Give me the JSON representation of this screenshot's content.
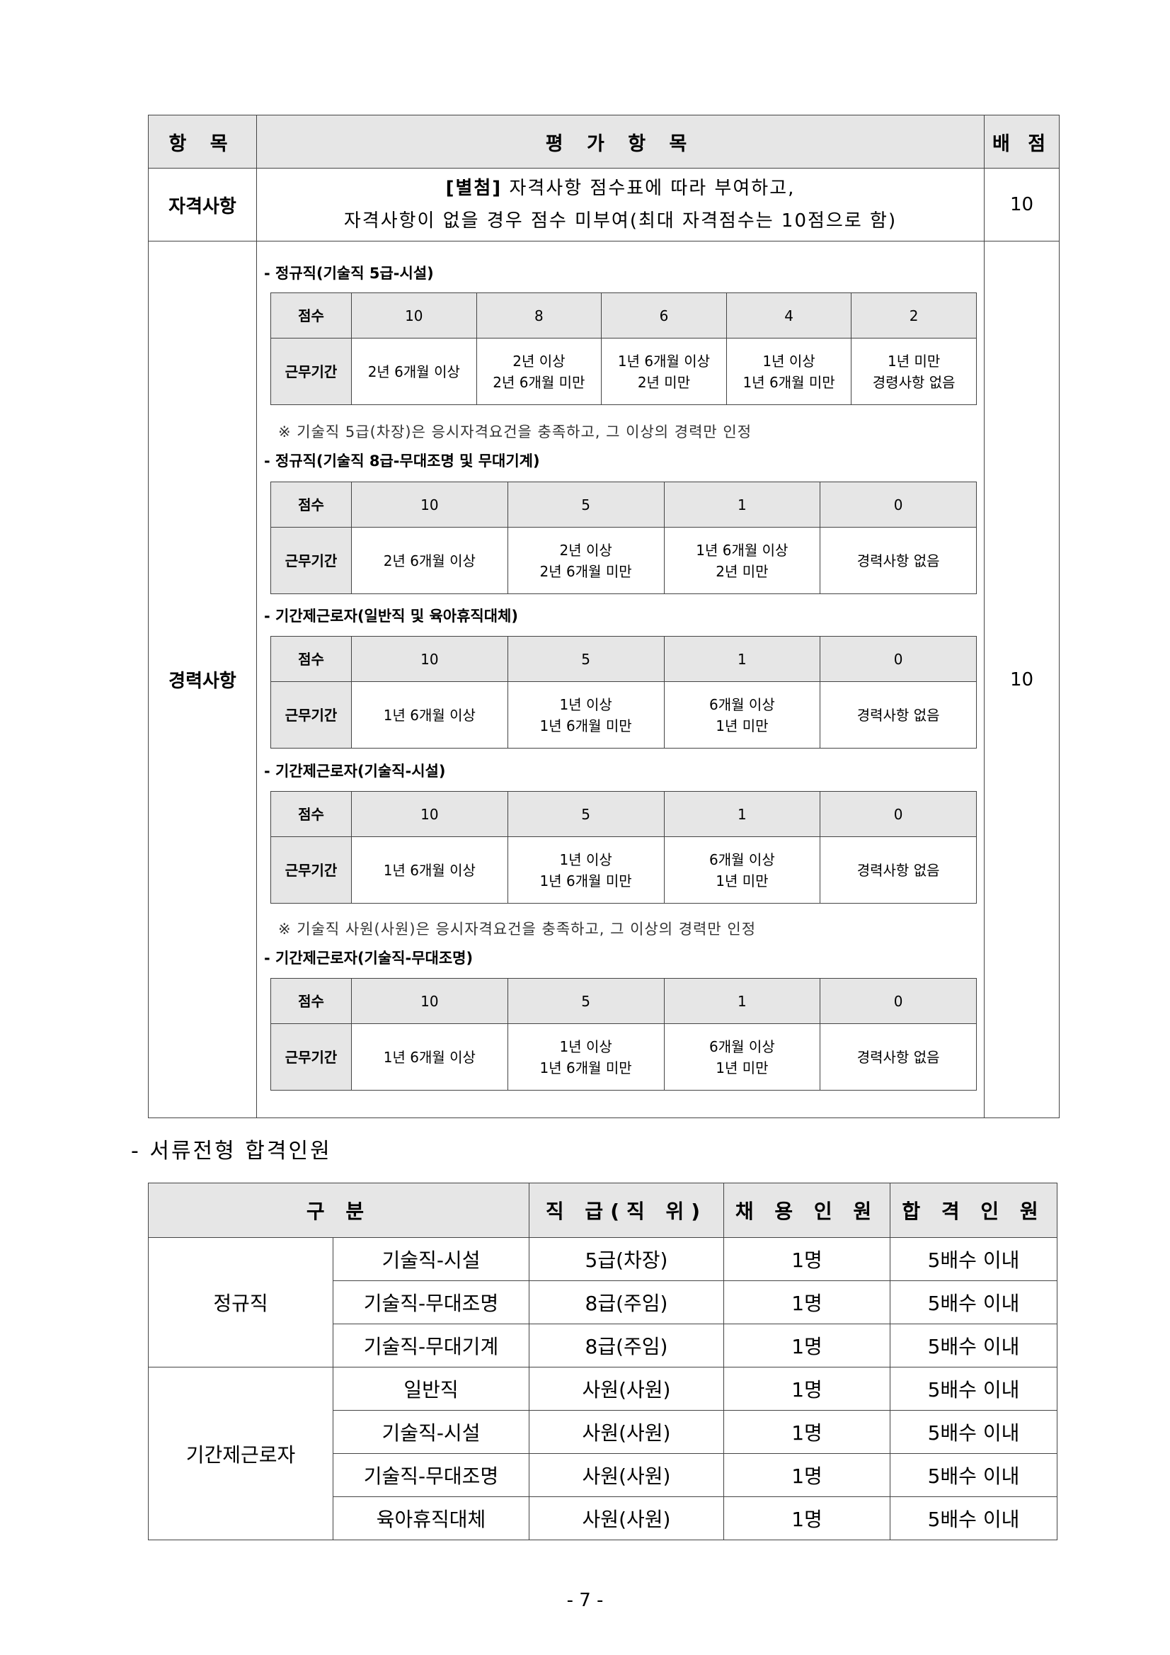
{
  "eval_table": {
    "headers": {
      "item": "항 목",
      "eval": "평 가 항 목",
      "points": "배 점"
    },
    "qualification": {
      "label": "자격사항",
      "desc_bold": "[별첨]",
      "desc_line1": " 자격사항 점수표에 따라 부여하고,",
      "desc_line2": "자격사항이 없을 경우 점수 미부여(최대 자격점수는 10점으로 함)",
      "points": "10"
    },
    "career": {
      "label": "경력사항",
      "points": "10",
      "score_label": "점수",
      "period_label": "근무기간",
      "blocks": [
        {
          "title": "- 정규직(기술직 5급-시설)",
          "scores": [
            "10",
            "8",
            "6",
            "4",
            "2"
          ],
          "periods": [
            [
              "2년 6개월 이상"
            ],
            [
              "2년 이상",
              "2년 6개월 미만"
            ],
            [
              "1년 6개월 이상",
              "2년 미만"
            ],
            [
              "1년 이상",
              "1년 6개월 미만"
            ],
            [
              "1년 미만",
              "경령사항 없음"
            ]
          ],
          "note": "※ 기술직 5급(차장)은 응시자격요건을 충족하고, 그 이상의 경력만 인정"
        },
        {
          "title": "- 정규직(기술직 8급-무대조명 및 무대기계)",
          "scores": [
            "10",
            "5",
            "1",
            "0"
          ],
          "periods": [
            [
              "2년 6개월 이상"
            ],
            [
              "2년 이상",
              "2년 6개월 미만"
            ],
            [
              "1년 6개월 이상",
              "2년 미만"
            ],
            [
              "경력사항 없음"
            ]
          ]
        },
        {
          "title": "- 기간제근로자(일반직 및 육아휴직대체)",
          "scores": [
            "10",
            "5",
            "1",
            "0"
          ],
          "periods": [
            [
              "1년 6개월 이상"
            ],
            [
              "1년 이상",
              "1년 6개월 미만"
            ],
            [
              "6개월 이상",
              "1년 미만"
            ],
            [
              "경력사항 없음"
            ]
          ]
        },
        {
          "title": "- 기간제근로자(기술직-시설)",
          "scores": [
            "10",
            "5",
            "1",
            "0"
          ],
          "periods": [
            [
              "1년 6개월 이상"
            ],
            [
              "1년 이상",
              "1년 6개월 미만"
            ],
            [
              "6개월 이상",
              "1년 미만"
            ],
            [
              "경력사항 없음"
            ]
          ],
          "note": "※ 기술직 사원(사원)은 응시자격요건을 충족하고, 그 이상의 경력만 인정"
        },
        {
          "title": "- 기간제근로자(기술직-무대조명)",
          "scores": [
            "10",
            "5",
            "1",
            "0"
          ],
          "periods": [
            [
              "1년 6개월 이상"
            ],
            [
              "1년 이상",
              "1년 6개월 미만"
            ],
            [
              "6개월 이상",
              "1년 미만"
            ],
            [
              "경력사항 없음"
            ]
          ]
        }
      ]
    }
  },
  "pass_section": {
    "title": "-   서류전형 합격인원",
    "headers": [
      "구 분",
      "직 급(직 위)",
      "채 용 인 원",
      "합 격 인 원"
    ],
    "groups": [
      {
        "name": "정규직",
        "rows": [
          [
            "기술직-시설",
            "5급(차장)",
            "1명",
            "5배수 이내"
          ],
          [
            "기술직-무대조명",
            "8급(주임)",
            "1명",
            "5배수 이내"
          ],
          [
            "기술직-무대기계",
            "8급(주임)",
            "1명",
            "5배수 이내"
          ]
        ]
      },
      {
        "name": "기간제근로자",
        "rows": [
          [
            "일반직",
            "사원(사원)",
            "1명",
            "5배수 이내"
          ],
          [
            "기술직-시설",
            "사원(사원)",
            "1명",
            "5배수 이내"
          ],
          [
            "기술직-무대조명",
            "사원(사원)",
            "1명",
            "5배수 이내"
          ],
          [
            "육아휴직대체",
            "사원(사원)",
            "1명",
            "5배수 이내"
          ]
        ]
      }
    ]
  },
  "page_number": "- 7 -"
}
